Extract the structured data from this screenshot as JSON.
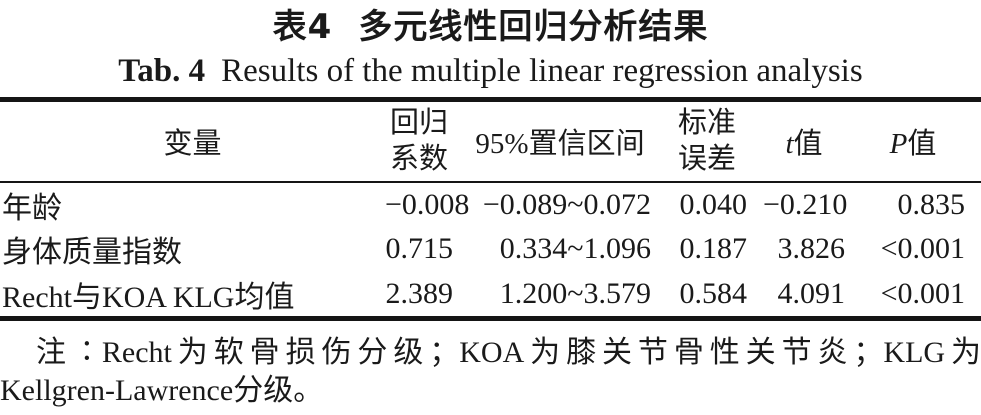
{
  "title": {
    "chinese_label": "表4",
    "chinese_text": "多元线性回归分析结果",
    "english_label": "Tab. 4",
    "english_text": "Results of the multiple linear regression analysis"
  },
  "table": {
    "header": {
      "variable": "变量",
      "coef_line1": "回归",
      "coef_line2": "系数",
      "ci": "95%置信区间",
      "se_line1": "标准",
      "se_line2": "误差",
      "t_symbol": "t",
      "t_suffix": "值",
      "p_symbol": "P",
      "p_suffix": "值"
    },
    "rows": [
      {
        "variable": "年龄",
        "coef": "−0.008",
        "ci": "−0.089~0.072",
        "se": "0.040",
        "t": "−0.210",
        "p": "0.835"
      },
      {
        "variable": "身体质量指数",
        "coef": "0.715",
        "ci": "0.334~1.096",
        "se": "0.187",
        "t": "3.826",
        "p": "<0.001"
      },
      {
        "variable": "Recht与KOA KLG均值",
        "coef": "2.389",
        "ci": "1.200~3.579",
        "se": "0.584",
        "t": "4.091",
        "p": "<0.001"
      }
    ]
  },
  "note": {
    "line1": "注∶Recht为软骨损伤分级；KOA为膝关节骨性关节炎；KLG为",
    "line2": "Kellgren-Lawrence分级。"
  },
  "colors": {
    "text": "#1a1a1a",
    "rule": "#151515",
    "background": "#ffffff"
  }
}
